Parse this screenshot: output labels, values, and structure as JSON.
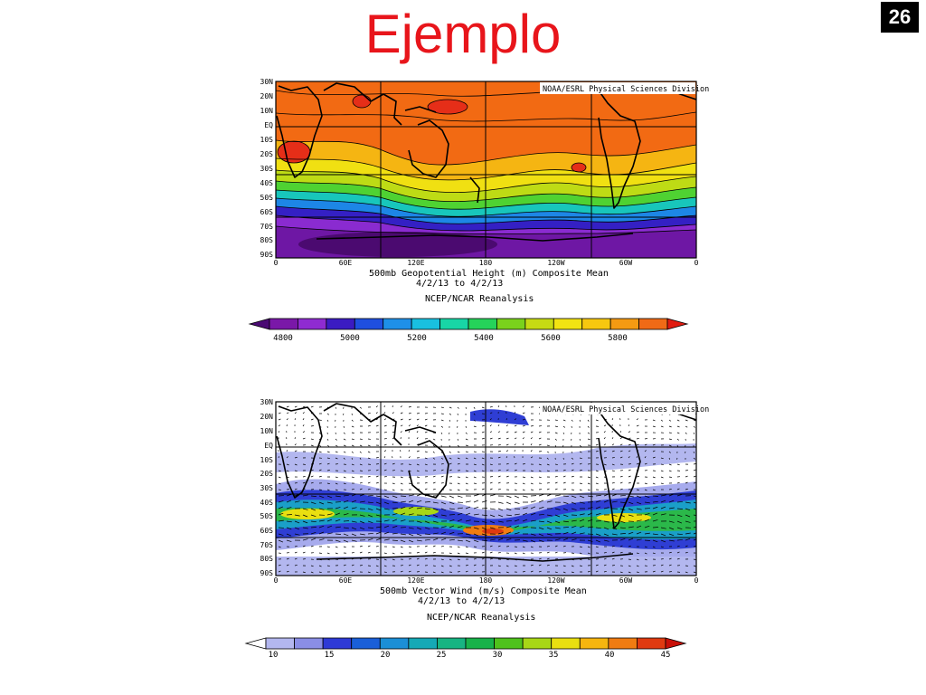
{
  "slide": {
    "title": "Ejemplo",
    "number": "26"
  },
  "maps": [
    {
      "credit": "NOAA/ESRL Physical Sciences Division",
      "lat_labels": [
        "30N",
        "20N",
        "10N",
        "EQ",
        "10S",
        "20S",
        "30S",
        "40S",
        "50S",
        "60S",
        "70S",
        "80S",
        "90S"
      ],
      "lon_labels": [
        "0",
        "60E",
        "120E",
        "180",
        "120W",
        "60W",
        "0"
      ],
      "caption_lines": [
        "500mb Geopotential Height (m) Composite Mean",
        "4/2/13  to 4/2/13",
        "NCEP/NCAR Reanalysis"
      ],
      "colorbar": {
        "labels": [
          "4800",
          "5000",
          "5200",
          "5400",
          "5600",
          "5800"
        ],
        "colors": [
          "#4a0a73",
          "#7a18a8",
          "#8f2bd1",
          "#3b1bc2",
          "#1f4fe0",
          "#1e90e8",
          "#19c0e0",
          "#18d6a6",
          "#25d35a",
          "#7ad21c",
          "#c6db13",
          "#f2e312",
          "#f7c80f",
          "#f59a12",
          "#f06a16",
          "#e11b10"
        ]
      }
    },
    {
      "credit": "NOAA/ESRL Physical Sciences Division",
      "lat_labels": [
        "30N",
        "20N",
        "10N",
        "EQ",
        "10S",
        "20S",
        "30S",
        "40S",
        "50S",
        "60S",
        "70S",
        "80S",
        "90S"
      ],
      "lon_labels": [
        "0",
        "60E",
        "120E",
        "180",
        "120W",
        "60W",
        "0"
      ],
      "caption_lines": [
        "500mb Vector Wind (m/s) Composite Mean",
        "4/2/13  to 4/2/13",
        "NCEP/NCAR Reanalysis"
      ],
      "colorbar": {
        "labels": [
          "10",
          "15",
          "20",
          "25",
          "30",
          "35",
          "40",
          "45"
        ],
        "colors": [
          "#ffffff",
          "#b3b7ef",
          "#8a8ee6",
          "#2e3ad6",
          "#1a5fd8",
          "#1b8fd6",
          "#15a9b6",
          "#17b482",
          "#18b24a",
          "#4fc21c",
          "#a8d716",
          "#e9df10",
          "#f6b50f",
          "#f07c12",
          "#e03a10",
          "#c81008"
        ]
      }
    }
  ]
}
